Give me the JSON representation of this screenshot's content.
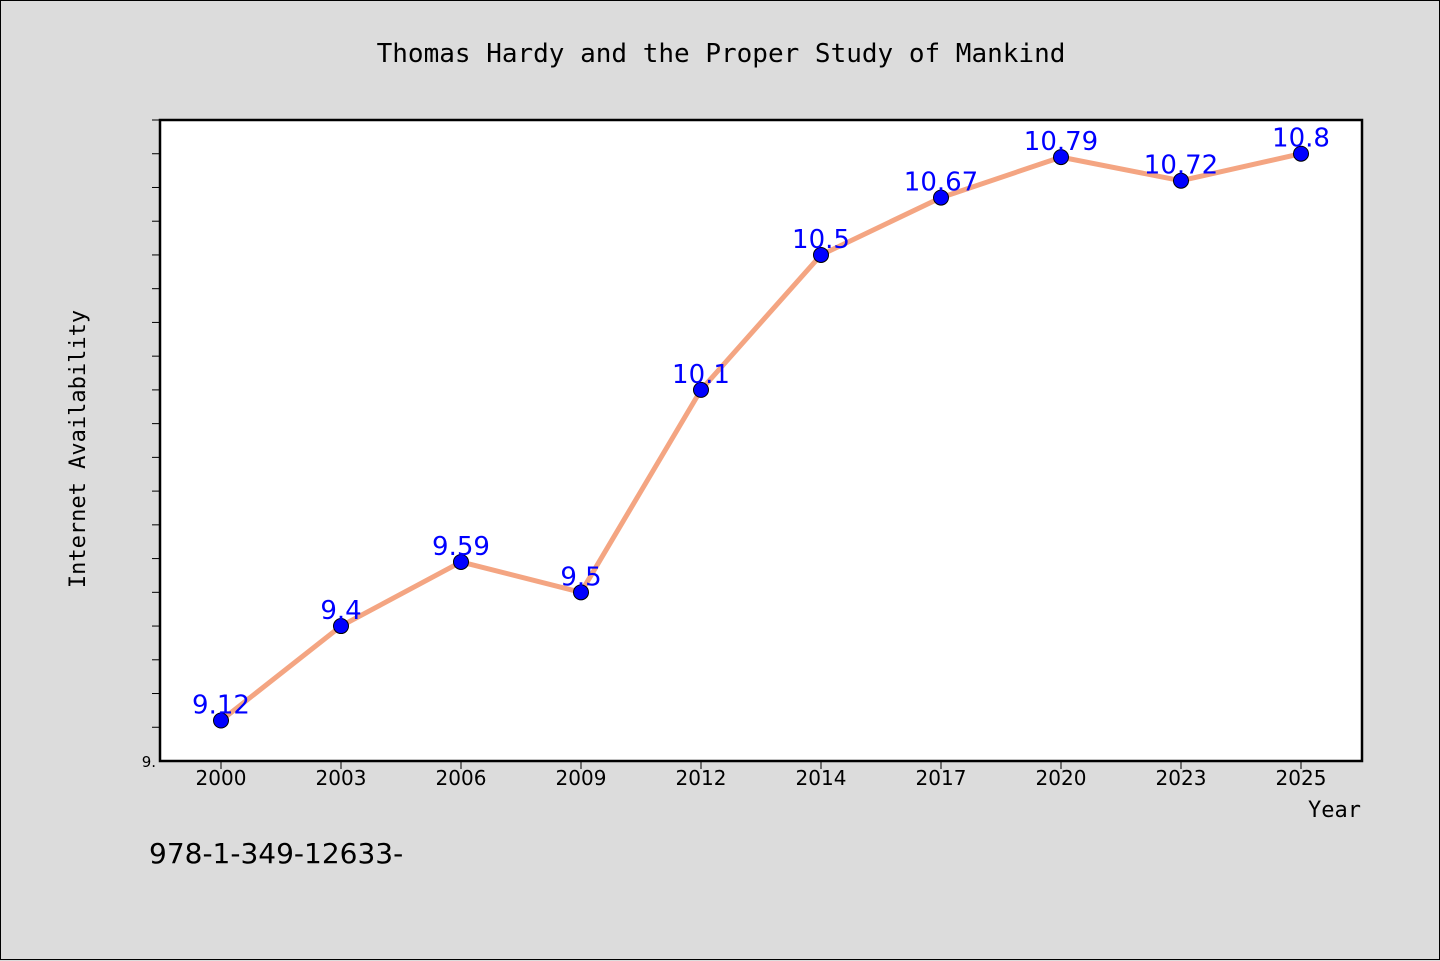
{
  "chart_data": {
    "type": "line",
    "title": "Thomas Hardy and the Proper Study of Mankind",
    "xlabel": "Year",
    "ylabel": "Internet Availability",
    "categories": [
      "2000",
      "2003",
      "2006",
      "2009",
      "2012",
      "2014",
      "2017",
      "2020",
      "2023",
      "2025"
    ],
    "series": [
      {
        "values": [
          9.12,
          9.4,
          9.59,
          9.5,
          10.1,
          10.5,
          10.67,
          10.79,
          10.72,
          10.8
        ],
        "data_labels": [
          "9.12",
          "9.4",
          "9.59",
          "9.5",
          "10.1",
          "10.5",
          "10.67",
          "10.79",
          "10.72",
          "10.8"
        ],
        "line_color": "#f4a582",
        "marker_color": "#0000ff",
        "label_color": "#0000ff"
      }
    ],
    "y_tick_label": "9.",
    "ylim": [
      9.0,
      10.9
    ],
    "grid": false,
    "legend": "none"
  },
  "footer": {
    "isbn_text": "978-1-349-12633-"
  },
  "colors": {
    "background": "#dcdcdc",
    "plot_background": "#ffffff",
    "line": "#f4a582",
    "marker": "#0000ff",
    "data_label": "#0000ff"
  }
}
